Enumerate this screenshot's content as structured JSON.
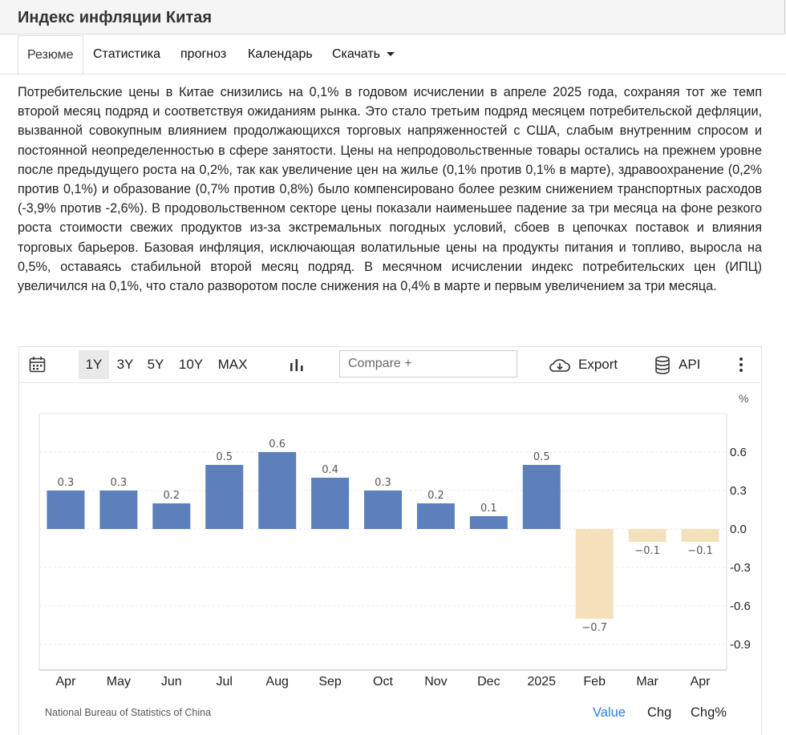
{
  "page": {
    "title": "Индекс инфляции Китая"
  },
  "tabs": [
    {
      "label": "Резюме"
    },
    {
      "label": "Статистика"
    },
    {
      "label": "прогноз"
    },
    {
      "label": "Календарь"
    },
    {
      "label": "Скачать"
    }
  ],
  "summary": "Потребительские цены в Китае снизились на 0,1% в годовом исчислении в апреле 2025 года, сохраняя тот же темп второй месяц подряд и соответствуя ожиданиям рынка. Это стало третьим подряд месяцем потребительской дефляции, вызванной совокупным влиянием продолжающихся торговых напряженностей с США, слабым внутренним спросом и постоянной неопределенностью в сфере занятости. Цены на непродовольственные товары остались на прежнем уровне после предыдущего роста на 0,2%, так как увеличение цен на жилье (0,1% против 0,1% в марте), здравоохранение (0,2% против 0,1%) и образование (0,7% против 0,8%) было компенсировано более резким снижением транспортных расходов (-3,9% против -2,6%). В продовольственном секторе цены показали наименьшее падение за три месяца на фоне резкого роста стоимости свежих продуктов из-за экстремальных погодных условий, сбоев в цепочках поставок и влияния торговых барьеров. Базовая инфляция, исключающая волатильные цены на продукты питания и топливо, выросла на 0,5%, оставаясь стабильной второй месяц подряд. В месячном исчислении индекс потребительских цен (ИПЦ) увеличился на 0,1%, что стало разворотом после снижения на 0,4% в марте и первым увеличением за три месяца.",
  "toolbar": {
    "calendar_icon": "calendar-icon",
    "ranges": [
      "1Y",
      "3Y",
      "5Y",
      "10Y",
      "MAX"
    ],
    "active_range": "1Y",
    "chart_type_icon": "bar-chart-icon",
    "compare_placeholder": "Compare +",
    "export_label": "Export",
    "export_icon": "cloud-download-icon",
    "api_label": "API",
    "api_icon": "database-icon",
    "more_icon": "vertical-dots-icon"
  },
  "chart_data": {
    "type": "bar",
    "categories": [
      "Apr",
      "May",
      "Jun",
      "Jul",
      "Aug",
      "Sep",
      "Oct",
      "Nov",
      "Dec",
      "2025",
      "Feb",
      "Mar",
      "Apr"
    ],
    "values": [
      0.3,
      0.3,
      0.2,
      0.5,
      0.6,
      0.4,
      0.3,
      0.2,
      0.1,
      0.5,
      -0.7,
      -0.1,
      -0.1
    ],
    "data_labels": [
      "0.3",
      "0.3",
      "0.2",
      "0.5",
      "0.6",
      "0.4",
      "0.3",
      "0.2",
      "0.1",
      "0.5",
      "−0.7",
      "−0.1",
      "−0.1"
    ],
    "yticks": [
      0.6,
      0.3,
      0.0,
      -0.3,
      -0.6,
      -0.9
    ],
    "ytick_labels": [
      "0.6",
      "0.3",
      "0.0",
      "-0.3",
      "-0.6",
      "-0.9"
    ],
    "yunit": "%",
    "ylim": [
      -1.1,
      0.9
    ],
    "y_axis_position": "right",
    "grid": true,
    "positive_color": "#5b80bb",
    "negative_color": "#f4e1bc"
  },
  "footer": {
    "source": "National Bureau of Statistics of China",
    "modes": [
      "Value",
      "Chg",
      "Chg%"
    ],
    "active_mode": "Value",
    "active_color": "#2b7fd4"
  }
}
